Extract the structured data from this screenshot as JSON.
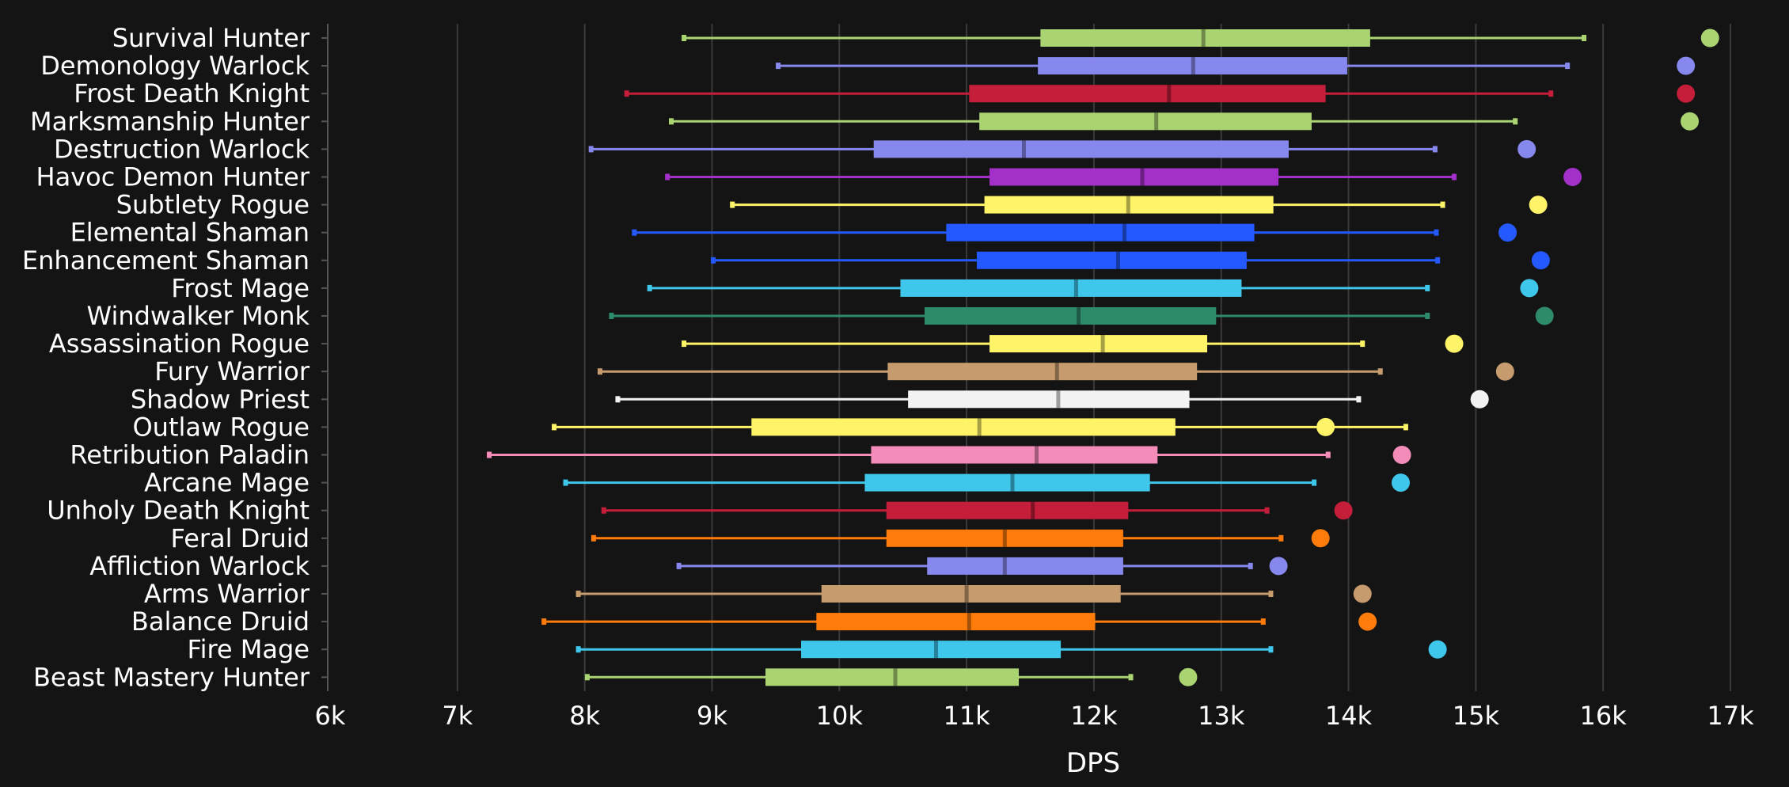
{
  "chart_data": {
    "type": "box",
    "xlabel": "DPS",
    "xlim": [
      6000,
      17000
    ],
    "xticks": [
      6000,
      7000,
      8000,
      9000,
      10000,
      11000,
      12000,
      13000,
      14000,
      15000,
      16000,
      17000
    ],
    "xtick_labels": [
      "6k",
      "7k",
      "8k",
      "9k",
      "10k",
      "11k",
      "12k",
      "13k",
      "14k",
      "15k",
      "16k",
      "17k"
    ],
    "grid": "vertical",
    "series": [
      {
        "name": "Survival Hunter",
        "color": "#aad372",
        "min": 8780,
        "q1": 11580,
        "median": 12860,
        "q3": 14170,
        "max": 15850,
        "dot": 16840
      },
      {
        "name": "Demonology Warlock",
        "color": "#8788ee",
        "min": 9520,
        "q1": 11560,
        "median": 12780,
        "q3": 13990,
        "max": 15720,
        "dot": 16650
      },
      {
        "name": "Frost Death Knight",
        "color": "#c41e3a",
        "min": 8330,
        "q1": 11020,
        "median": 12590,
        "q3": 13820,
        "max": 15590,
        "dot": 16650
      },
      {
        "name": "Marksmanship Hunter",
        "color": "#aad372",
        "min": 8680,
        "q1": 11100,
        "median": 12490,
        "q3": 13710,
        "max": 15310,
        "dot": 16680
      },
      {
        "name": "Destruction Warlock",
        "color": "#8788ee",
        "min": 8050,
        "q1": 10270,
        "median": 11450,
        "q3": 13530,
        "max": 14680,
        "dot": 15400
      },
      {
        "name": "Havoc Demon Hunter",
        "color": "#a330c9",
        "min": 8650,
        "q1": 11180,
        "median": 12380,
        "q3": 13450,
        "max": 14830,
        "dot": 15760
      },
      {
        "name": "Subtlety Rogue",
        "color": "#fff468",
        "min": 9160,
        "q1": 11140,
        "median": 12270,
        "q3": 13410,
        "max": 14740,
        "dot": 15490
      },
      {
        "name": "Elemental Shaman",
        "color": "#2359ff",
        "min": 8390,
        "q1": 10840,
        "median": 12240,
        "q3": 13260,
        "max": 14690,
        "dot": 15250
      },
      {
        "name": "Enhancement Shaman",
        "color": "#2359ff",
        "min": 9010,
        "q1": 11080,
        "median": 12190,
        "q3": 13200,
        "max": 14700,
        "dot": 15510
      },
      {
        "name": "Frost Mage",
        "color": "#3fc7eb",
        "min": 8510,
        "q1": 10480,
        "median": 11860,
        "q3": 13160,
        "max": 14620,
        "dot": 15420
      },
      {
        "name": "Windwalker Monk",
        "color": "#2e8b6a",
        "min": 8210,
        "q1": 10670,
        "median": 11880,
        "q3": 12960,
        "max": 14620,
        "dot": 15540
      },
      {
        "name": "Assassination Rogue",
        "color": "#fff468",
        "min": 8780,
        "q1": 11180,
        "median": 12070,
        "q3": 12890,
        "max": 14110,
        "dot": 14830
      },
      {
        "name": "Fury Warrior",
        "color": "#c69b6d",
        "min": 8120,
        "q1": 10380,
        "median": 11710,
        "q3": 12810,
        "max": 14250,
        "dot": 15230
      },
      {
        "name": "Shadow Priest",
        "color": "#f2f2f2",
        "min": 8260,
        "q1": 10540,
        "median": 11720,
        "q3": 12750,
        "max": 14080,
        "dot": 15030
      },
      {
        "name": "Outlaw Rogue",
        "color": "#fff468",
        "min": 7760,
        "q1": 9310,
        "median": 11100,
        "q3": 12640,
        "max": 14450,
        "dot": 13820
      },
      {
        "name": "Retribution Paladin",
        "color": "#f48cba",
        "min": 7250,
        "q1": 10250,
        "median": 11550,
        "q3": 12500,
        "max": 13840,
        "dot": 14420
      },
      {
        "name": "Arcane Mage",
        "color": "#3fc7eb",
        "min": 7850,
        "q1": 10200,
        "median": 11360,
        "q3": 12440,
        "max": 13730,
        "dot": 14410
      },
      {
        "name": "Unholy Death Knight",
        "color": "#c41e3a",
        "min": 8150,
        "q1": 10370,
        "median": 11520,
        "q3": 12270,
        "max": 13360,
        "dot": 13960
      },
      {
        "name": "Feral Druid",
        "color": "#ff7c0a",
        "min": 8070,
        "q1": 10370,
        "median": 11300,
        "q3": 12230,
        "max": 13470,
        "dot": 13780
      },
      {
        "name": "Affliction Warlock",
        "color": "#8788ee",
        "min": 8740,
        "q1": 10690,
        "median": 11300,
        "q3": 12230,
        "max": 13230,
        "dot": 13450
      },
      {
        "name": "Arms Warrior",
        "color": "#c69b6d",
        "min": 7950,
        "q1": 9860,
        "median": 11000,
        "q3": 12210,
        "max": 13390,
        "dot": 14110
      },
      {
        "name": "Balance Druid",
        "color": "#ff7c0a",
        "min": 7680,
        "q1": 9820,
        "median": 11020,
        "q3": 12010,
        "max": 13330,
        "dot": 14150
      },
      {
        "name": "Fire Mage",
        "color": "#3fc7eb",
        "min": 7950,
        "q1": 9700,
        "median": 10760,
        "q3": 11740,
        "max": 13390,
        "dot": 14700
      },
      {
        "name": "Beast Mastery Hunter",
        "color": "#aad372",
        "min": 8020,
        "q1": 9420,
        "median": 10440,
        "q3": 11410,
        "max": 12290,
        "dot": 12740
      }
    ]
  }
}
